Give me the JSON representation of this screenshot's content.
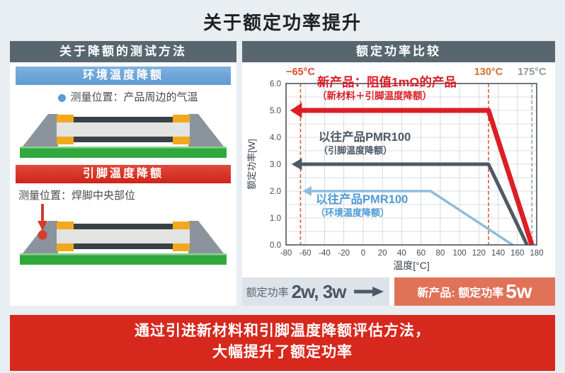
{
  "title": "关于额定功率提升",
  "colors": {
    "page_bg": "#e9eef2",
    "header_slate": "#57666f",
    "ambient_blue": "#5f9ad2",
    "accent_red": "#d7281e",
    "chart_red": "#dc1e26",
    "chart_slate": "#4d5a66",
    "chart_lightblue": "#8fbcdf",
    "highlight_orange": "#e07257",
    "pcb_green": "#2fa83c",
    "terminal_yellow": "#f2a81d"
  },
  "left_panel": {
    "header": "关于降额的测试方法",
    "ambient_section": {
      "bar_label": "环境温度降额",
      "measure_note": "测量位置：产品周边的气温"
    },
    "terminal_section": {
      "bar_label": "引脚温度降额",
      "measure_note": "测量位置：焊脚中央部位"
    }
  },
  "right_panel": {
    "header": "额定功率比较",
    "summary": {
      "old_prefix": "额定功率",
      "old_value": "2w, 3w",
      "new_prefix": "新产品: 额定功率",
      "new_value": "5w"
    }
  },
  "chart_data": {
    "type": "line",
    "xlabel": "温度[°C]",
    "ylabel": "额定功率[W]",
    "xlim": [
      -80,
      180
    ],
    "ylim": [
      0,
      6
    ],
    "x_ticks": [
      -80,
      -60,
      -40,
      -20,
      0,
      20,
      40,
      60,
      80,
      100,
      120,
      140,
      160,
      180
    ],
    "x_tick_labels": [
      "-80",
      "-60",
      "-40",
      "-20",
      "0",
      "20",
      "40",
      "60",
      "80",
      "100",
      "120",
      "140",
      "160",
      "180"
    ],
    "y_ticks": [
      0,
      1,
      2,
      3,
      4,
      5,
      6
    ],
    "y_tick_labels": [
      "0.0",
      "1.0",
      "2.0",
      "3.0",
      "4.0",
      "5.0",
      "6.0"
    ],
    "y_minor_step": 0.5,
    "grid": true,
    "legend_position": "inline-annotations",
    "reference_lines": [
      {
        "x": -65,
        "label": "−65°C",
        "color": "#dd5d3c",
        "label_color": "#dd4a2d"
      },
      {
        "x": 130,
        "label": "130°C",
        "color": "#dd5d3c",
        "label_color": "#d2702c"
      },
      {
        "x": 175,
        "label": "175°C",
        "color": "#99a1a7",
        "label_color": "#8e979e"
      }
    ],
    "series": [
      {
        "name": "以往产品PMR100",
        "sub": "（环境温度降额）",
        "color": "#8fbcdf",
        "label_color": "#4f9ad2",
        "width": 3.5,
        "points": [
          [
            -55,
            2
          ],
          [
            70,
            2
          ],
          [
            155,
            0
          ]
        ]
      },
      {
        "name": "以往产品PMR100",
        "sub": "（引脚温度降额）",
        "color": "#4d5a66",
        "label_color": "#4d5a66",
        "width": 5,
        "points": [
          [
            -65,
            3
          ],
          [
            130,
            3
          ],
          [
            170,
            0
          ]
        ]
      },
      {
        "name": "新产品：阻值1mΩ的产品",
        "sub": "（新材料＋引脚温度降额）",
        "color": "#dc1e26",
        "label_color": "#dc1e26",
        "width": 7,
        "points": [
          [
            -65,
            5
          ],
          [
            130,
            5
          ],
          [
            175,
            0
          ]
        ]
      }
    ]
  },
  "banner": {
    "line1": "通过引进新材料和引脚温度降额评估方法，",
    "line2": "大幅提升了额定功率"
  }
}
